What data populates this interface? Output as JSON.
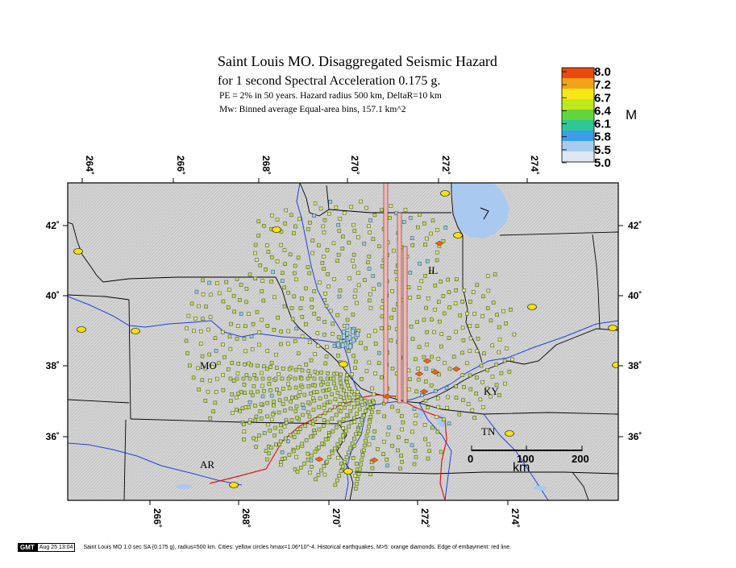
{
  "header": {
    "title": "Saint Louis MO. Disaggregated Seismic Hazard",
    "subtitle": "for 1 second Spectral Acceleration 0.175 g.",
    "line3": "PE = 2% in 50 years. Hazard radius 500 km, DeltaR=10 km",
    "line4": "Mw: Binned average Equal-area bins, 157.1 km^2"
  },
  "colorbar": {
    "unit": "M",
    "labels": [
      "8.0",
      "7.2",
      "6.7",
      "6.4",
      "6.1",
      "5.8",
      "5.5",
      "5.0"
    ],
    "colors": [
      "#e84a10",
      "#f0a21a",
      "#f5e814",
      "#bfe81e",
      "#62d43c",
      "#2dc894",
      "#3a9ee8",
      "#a8ccf0",
      "#dde8f4"
    ]
  },
  "map": {
    "top_ticks": [
      "264˚",
      "266˚",
      "268˚",
      "270˚",
      "272˚",
      "274˚"
    ],
    "bottom_ticks": [
      "266˚",
      "268˚",
      "270˚",
      "272˚",
      "274˚"
    ],
    "left_ticks": [
      "42˚",
      "40˚",
      "38˚",
      "36˚"
    ],
    "right_ticks": [
      "42˚",
      "40˚",
      "38˚",
      "36˚"
    ],
    "states": [
      "IL",
      "MO",
      "KY",
      "TN",
      "AR"
    ],
    "scale_bar": {
      "labels": [
        "0",
        "100",
        "200"
      ],
      "unit": "km"
    },
    "colors": {
      "land": "#d2d2d2",
      "water": "#a9c9f0",
      "river": "#2040e0",
      "embayment": "#e01818",
      "city": "#f8e200",
      "quake": "#e8641e",
      "bar": "#f2b8b4",
      "cell_outline": "#404040",
      "cell_fill": "#b9e04a"
    }
  },
  "footer": {
    "logo": "GMT",
    "date": "Aug 25 13:04",
    "caption": "Saint Louis MO 1.0 sec SA (0.175 g), radius=500 km. Cities: yellow circles hmax=1.06*10^-4. Historical earthquakes, M>5: orange diamonds. Edge of embayment: red line."
  }
}
